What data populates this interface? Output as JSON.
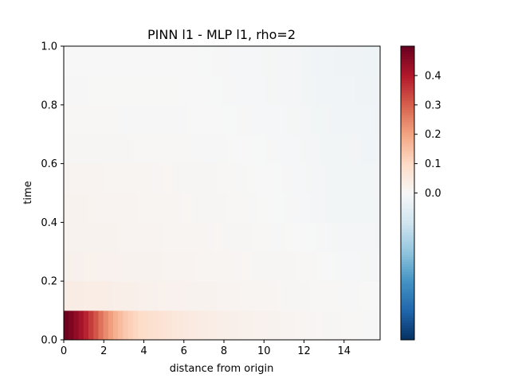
{
  "chart_data": {
    "type": "heatmap",
    "title": "PINN l1 - MLP l1, rho=2",
    "xlabel": "distance from origin",
    "ylabel": "time",
    "xlim": [
      0,
      15.8
    ],
    "ylim": [
      0,
      1.0
    ],
    "x_ticks": [
      0,
      2,
      4,
      6,
      8,
      10,
      12,
      14
    ],
    "y_ticks": [
      0.0,
      0.2,
      0.4,
      0.6,
      0.8,
      1.0
    ],
    "colormap": "RdBu_r",
    "color_range": [
      -0.5,
      0.5
    ],
    "colorbar_ticks": [
      0.0,
      0.1,
      0.2,
      0.3,
      0.4
    ],
    "grid": false,
    "time_bands": [
      {
        "t_range": [
          0.0,
          0.1
        ],
        "points": [
          [
            0,
            0.5
          ],
          [
            0.5,
            0.46
          ],
          [
            1.0,
            0.4
          ],
          [
            1.5,
            0.33
          ],
          [
            2.0,
            0.25
          ],
          [
            2.5,
            0.19
          ],
          [
            3.0,
            0.14
          ],
          [
            3.5,
            0.11
          ],
          [
            4.0,
            0.09
          ],
          [
            5.0,
            0.07
          ],
          [
            6.0,
            0.05
          ],
          [
            7.0,
            0.04
          ],
          [
            8.0,
            0.03
          ],
          [
            9.0,
            0.025
          ],
          [
            10.0,
            0.02
          ],
          [
            11.0,
            0.015
          ],
          [
            12.0,
            0.01
          ],
          [
            13.0,
            0.008
          ],
          [
            14.0,
            0.005
          ],
          [
            15.0,
            0.003
          ],
          [
            15.8,
            0.002
          ]
        ]
      },
      {
        "t_range": [
          0.1,
          0.2
        ],
        "points": [
          [
            0,
            0.04
          ],
          [
            2.0,
            0.035
          ],
          [
            4.0,
            0.025
          ],
          [
            6.0,
            0.02
          ],
          [
            8.0,
            0.015
          ],
          [
            10.0,
            0.01
          ],
          [
            12.0,
            0.006
          ],
          [
            14.0,
            0.003
          ],
          [
            15.8,
            0.0
          ]
        ]
      },
      {
        "t_range": [
          0.2,
          0.3
        ],
        "points": [
          [
            0,
            0.025
          ],
          [
            4.0,
            0.018
          ],
          [
            8.0,
            0.01
          ],
          [
            12.0,
            0.005
          ],
          [
            14.0,
            -0.005
          ],
          [
            15.8,
            -0.01
          ]
        ]
      },
      {
        "t_range": [
          0.3,
          0.4
        ],
        "points": [
          [
            0,
            0.02
          ],
          [
            4.0,
            0.014
          ],
          [
            8.0,
            0.008
          ],
          [
            12.0,
            0.0
          ],
          [
            14.0,
            -0.01
          ],
          [
            15.8,
            -0.012
          ]
        ]
      },
      {
        "t_range": [
          0.4,
          0.5
        ],
        "points": [
          [
            0,
            0.018
          ],
          [
            4.0,
            0.012
          ],
          [
            8.0,
            0.006
          ],
          [
            12.0,
            -0.005
          ],
          [
            13.0,
            -0.012
          ],
          [
            15.8,
            -0.012
          ]
        ]
      },
      {
        "t_range": [
          0.5,
          0.6
        ],
        "points": [
          [
            0,
            0.015
          ],
          [
            4.0,
            0.01
          ],
          [
            8.0,
            0.005
          ],
          [
            12.0,
            -0.006
          ],
          [
            13.0,
            -0.012
          ],
          [
            15.8,
            -0.014
          ]
        ]
      },
      {
        "t_range": [
          0.6,
          0.7
        ],
        "points": [
          [
            0,
            0.008
          ],
          [
            4.0,
            0.005
          ],
          [
            8.0,
            0.002
          ],
          [
            11.5,
            -0.006
          ],
          [
            13.0,
            -0.012
          ],
          [
            15.8,
            -0.016
          ]
        ]
      },
      {
        "t_range": [
          0.7,
          0.8
        ],
        "points": [
          [
            0,
            0.004
          ],
          [
            6.0,
            0.002
          ],
          [
            11.5,
            -0.008
          ],
          [
            13.0,
            -0.014
          ],
          [
            15.8,
            -0.02
          ]
        ]
      },
      {
        "t_range": [
          0.8,
          0.9
        ],
        "points": [
          [
            0,
            0.002
          ],
          [
            6.0,
            0.001
          ],
          [
            11.5,
            -0.01
          ],
          [
            13.0,
            -0.016
          ],
          [
            15.8,
            -0.022
          ]
        ]
      },
      {
        "t_range": [
          0.9,
          1.0
        ],
        "points": [
          [
            0,
            0.001
          ],
          [
            6.0,
            0.0
          ],
          [
            11.5,
            -0.01
          ],
          [
            13.0,
            -0.018
          ],
          [
            15.8,
            -0.024
          ]
        ]
      }
    ]
  }
}
